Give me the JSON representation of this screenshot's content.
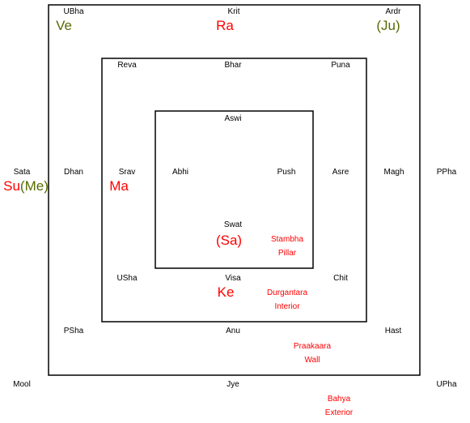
{
  "nakshatras": {
    "ubha": "UBha",
    "krit": "Krit",
    "ardr": "Ardr",
    "reva": "Reva",
    "bhar": "Bhar",
    "puna": "Puna",
    "aswi": "Aswi",
    "sata": "Sata",
    "dhan": "Dhan",
    "srav": "Srav",
    "abhi": "Abhi",
    "push": "Push",
    "asre": "Asre",
    "magh": "Magh",
    "ppha": "PPha",
    "swat": "Swat",
    "usha": "USha",
    "visa": "Visa",
    "chit": "Chit",
    "psha": "PSha",
    "anu": "Anu",
    "hast": "Hast",
    "mool": "Mool",
    "jye": "Jye",
    "upha": "UPha"
  },
  "planets": {
    "ve": "Ve",
    "ra": "Ra",
    "ju": "(Ju)",
    "su": "Su",
    "me": "(Me)",
    "ma": "Ma",
    "sa": "(Sa)",
    "ke": "Ke"
  },
  "zones": {
    "stambha_1": "Stambha",
    "stambha_2": "Pillar",
    "durgantara_1": "Durgantara",
    "durgantara_2": "Interior",
    "praakaara_1": "Praakaara",
    "praakaara_2": "Wall",
    "bahya_1": "Bahya",
    "bahya_2": "Exterior"
  },
  "colors": {
    "malefic": "#ff0000",
    "benefic": "#556b00",
    "text": "#000000",
    "line": "#000000"
  }
}
